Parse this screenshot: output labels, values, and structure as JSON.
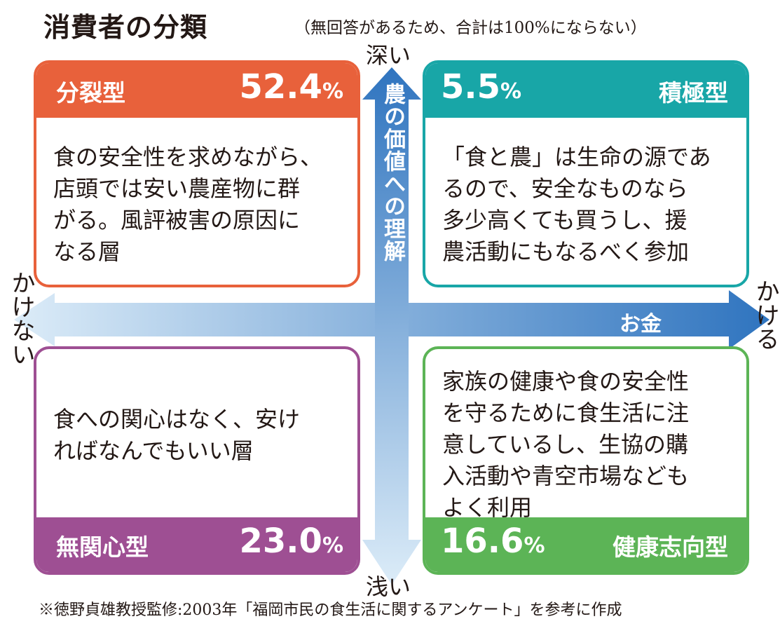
{
  "title": "消費者の分類",
  "note": "（無回答があるため、合計は100%にならない）",
  "footnote": "※徳野貞雄教授監修:2003年「福岡市民の食生活に関するアンケート」を参考に作成",
  "axes": {
    "vertical_label": "農の価値への理解",
    "vertical_top": "深い",
    "vertical_bottom": "浅い",
    "horizontal_label": "お金",
    "horizontal_left": "かけない",
    "horizontal_right": "かける"
  },
  "quadrants": {
    "top_left": {
      "name": "分裂型",
      "pct": "52.4",
      "unit": "%",
      "color": "#e8613b",
      "text": "食の安全性を求めながら、\n店頭では安い農産物に群\nがる。風評被害の原因に\nなる層"
    },
    "top_right": {
      "name": "積極型",
      "pct": "5.5",
      "unit": "%",
      "color": "#18a6a7",
      "text": "「食と農」は生命の源であ\nるので、安全なものなら\n多少高くても買うし、援\n農活動にもなるべく参加"
    },
    "bottom_left": {
      "name": "無関心型",
      "pct": "23.0",
      "unit": "%",
      "color": "#9e4f93",
      "text": "食への関心はなく、安け\nればなんでもいい層"
    },
    "bottom_right": {
      "name": "健康志向型",
      "pct": "16.6",
      "unit": "%",
      "color": "#5cb456",
      "text": "家族の健康や食の安全性\nを守るために食生活に注\n意しているし、生協の購\n入活動や青空市場なども\nよく利用"
    }
  }
}
